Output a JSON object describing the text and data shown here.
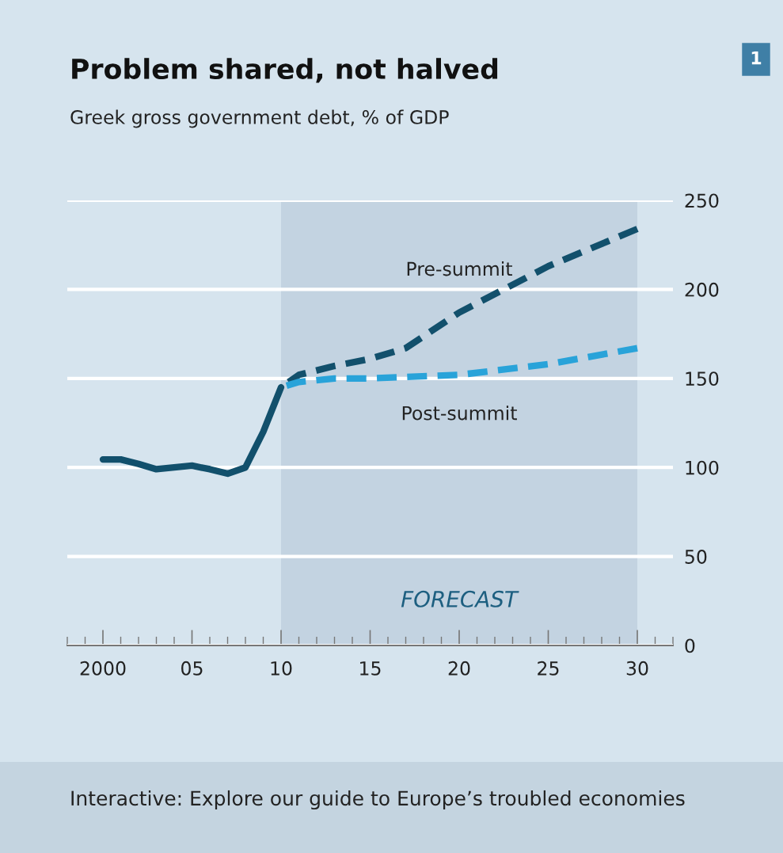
{
  "chart_data": {
    "type": "line",
    "title": "Problem shared, not halved",
    "subtitle": "Greek gross government debt, % of GDP",
    "xlim": [
      1998,
      2032
    ],
    "xticks": [
      {
        "value": 2000,
        "label": "2000"
      },
      {
        "value": 2005,
        "label": "05"
      },
      {
        "value": 2010,
        "label": "10"
      },
      {
        "value": 2015,
        "label": "15"
      },
      {
        "value": 2020,
        "label": "20"
      },
      {
        "value": 2025,
        "label": "25"
      },
      {
        "value": 2030,
        "label": "30"
      }
    ],
    "ylim": [
      0,
      250
    ],
    "yticks": [
      0,
      50,
      100,
      150,
      200,
      250
    ],
    "grid": "y",
    "bands": [
      {
        "axis": "x",
        "from": 2010,
        "to": 2030,
        "label": "FORECAST",
        "color": "#c3d3e1"
      }
    ],
    "series": [
      {
        "color": "#12506c",
        "line_style": "solid",
        "x": [
          2000,
          2001,
          2002,
          2003,
          2004,
          2005,
          2006,
          2007,
          2008,
          2009,
          2010
        ],
        "values": [
          104.5,
          104.5,
          102,
          99,
          100,
          101,
          99,
          96.5,
          100,
          120,
          145
        ]
      },
      {
        "name": "Pre-summit",
        "color": "#12506c",
        "line_style": "dashed",
        "x": [
          2010,
          2011,
          2013,
          2015,
          2017,
          2020,
          2025,
          2030
        ],
        "values": [
          145,
          152,
          157,
          161,
          167,
          187,
          213,
          234
        ]
      },
      {
        "name": "Post-summit",
        "color": "#29a3d9",
        "line_style": "dashed",
        "x": [
          2010,
          2011,
          2013,
          2015,
          2020,
          2025,
          2030
        ],
        "values": [
          145,
          148,
          150,
          150,
          152,
          158,
          167
        ]
      }
    ],
    "annotations": [
      "1",
      "Interactive: Explore our guide to Europe’s troubled economies"
    ]
  }
}
